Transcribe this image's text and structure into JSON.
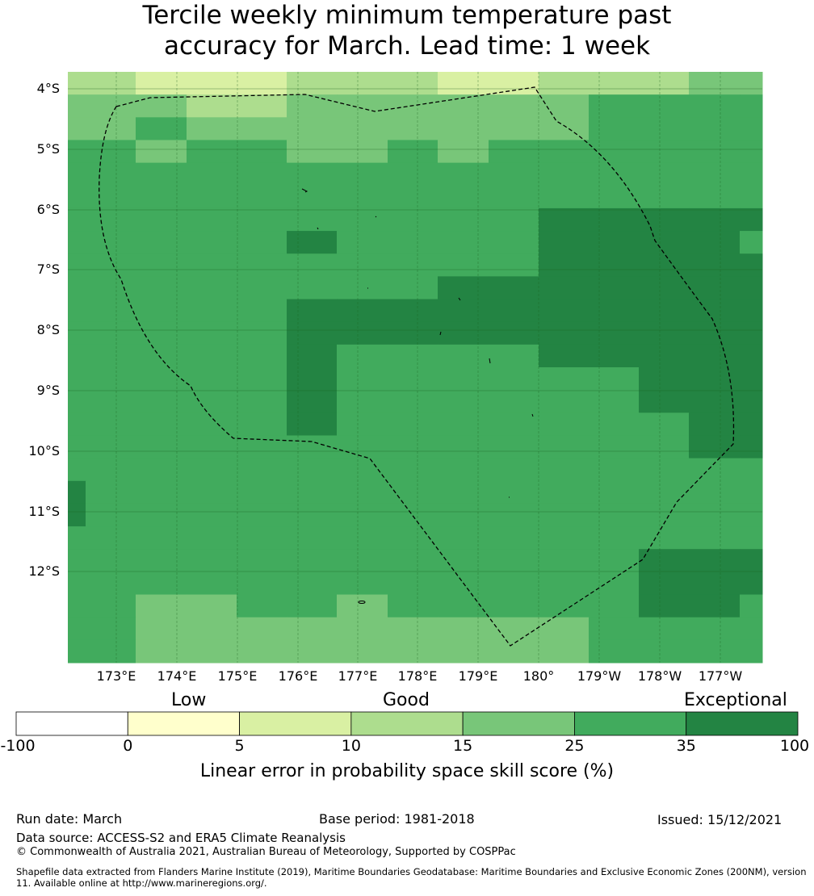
{
  "title": {
    "line1": "Tercile weekly minimum temperature past",
    "line2": "accuracy for March. Lead time: 1 week"
  },
  "map": {
    "lat_labels": [
      "4°S",
      "5°S",
      "6°S",
      "7°S",
      "8°S",
      "9°S",
      "10°S",
      "11°S",
      "12°S"
    ],
    "lon_labels": [
      "173°E",
      "174°E",
      "175°E",
      "176°E",
      "177°E",
      "178°E",
      "179°E",
      "180°",
      "179°W",
      "178°W",
      "177°W"
    ],
    "ocean_fill_color": "#41ab5d",
    "grid_line_color": "#1b5e20",
    "boundary_style": "dashed",
    "grid_rows": [
      "DBBAAABBBAACCCDD",
      "DDDDCCDDDDDDEEEE",
      "DDDEDDDDDDDDEEEE",
      "EEEDEEDDEDEEEEEE",
      "EEEEEEEEEEEEEEEE",
      "EEEEEEEEEEEEEEEE",
      "EEEEEEEEEEEFFFFF",
      "EEEEEEFEEEEFFFFE",
      "EEEEEEEEEEEFFFFF",
      "EEEEEEEEEFFFFFFF",
      "EEEEEEFFFFFFFFFF",
      "EEEEEEFFFFFFFFFF",
      "EEEEEEFEEEEFFFFF",
      "EEEEEEFEEEEEEFFF",
      "EEEEEEFEEEEEEFFF",
      "EEEEEEFEEEEEEEFF",
      "EEEEEEEEEEEEEEFF",
      "FEEEEEEEEEEEEEEE",
      "EFEEEEEEEEEEEEEE",
      "EFEEEEEEEEEEEEEE",
      "EEEEEEEEEEEEEEEE",
      "EEEEEEEEEEEEEFFF",
      "EEEEEEEEEEEEEFFF",
      "EEEDDEEDEEEEEFFE",
      "EEEDDDDDDDDDEEEE",
      "EEEDDDDDDDDDEEEE"
    ],
    "category_colors": {
      "A": "#d9f0a3",
      "B": "#addd8e",
      "C": "#addd8e",
      "D": "#78c679",
      "E": "#41ab5d",
      "F": "#238443"
    }
  },
  "colorbar": {
    "categories": [
      "Low",
      "Good",
      "Exceptional"
    ],
    "ticks": [
      "-100",
      "0",
      "5",
      "10",
      "15",
      "25",
      "35",
      "100"
    ],
    "colors": [
      "#ffffff",
      "#ffffcc",
      "#d9f0a3",
      "#addd8e",
      "#78c679",
      "#41ab5d",
      "#238443"
    ],
    "label": "Linear error in probability space skill score (%)"
  },
  "footer": {
    "run_date": "Run date: March",
    "base_period": "Base period: 1981-2018",
    "issued": "Issued: 15/12/2021",
    "data_source": "Data source: ACCESS-S2 and ERA5 Climate Reanalysis",
    "copyright": "© Commonwealth of Australia 2021, Australian Bureau of Meteorology, Supported by COSPPac",
    "shapefile": "Shapefile data extracted from Flanders Marine Institute (2019), Maritime Boundaries Geodatabase: Maritime Boundaries and Exclusive Economic Zones (200NM), version 11. Available online at http://www.marineregions.org/."
  }
}
